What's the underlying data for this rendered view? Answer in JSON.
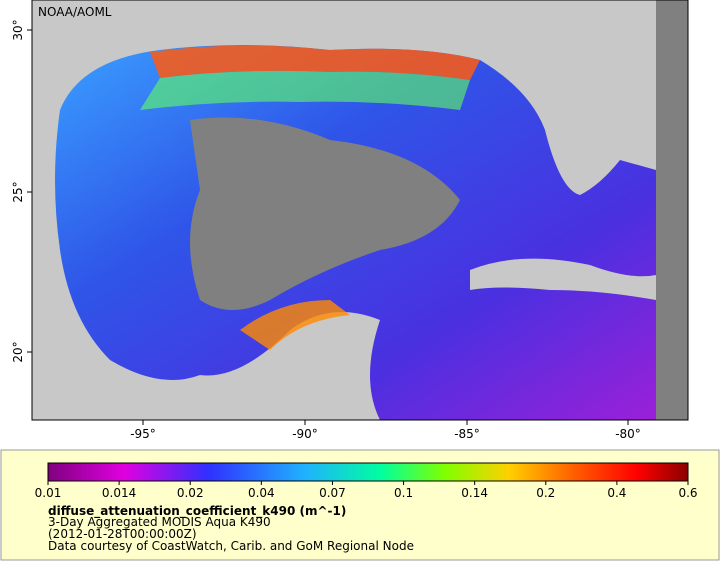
{
  "map": {
    "label": "NOAA/AOML",
    "lon_ticks": [
      "-95°",
      "-90°",
      "-85°",
      "-80°"
    ],
    "lat_ticks": [
      "30°",
      "25°",
      "20°"
    ]
  },
  "colorbar": {
    "ticks": [
      "0.01",
      "0.014",
      "0.02",
      "0.04",
      "0.07",
      "0.1",
      "0.14",
      "0.2",
      "0.4",
      "0.6"
    ]
  },
  "caption": {
    "variable": "diffuse_attenuation_coefficient_k490 (m^-1)",
    "lines": [
      "3-Day Aggregated MODIS Aqua K490",
      "(2012-01-28T00:00:00Z)",
      "Data courtesy of CoastWatch, Carib. and GoM Regional Node"
    ]
  }
}
